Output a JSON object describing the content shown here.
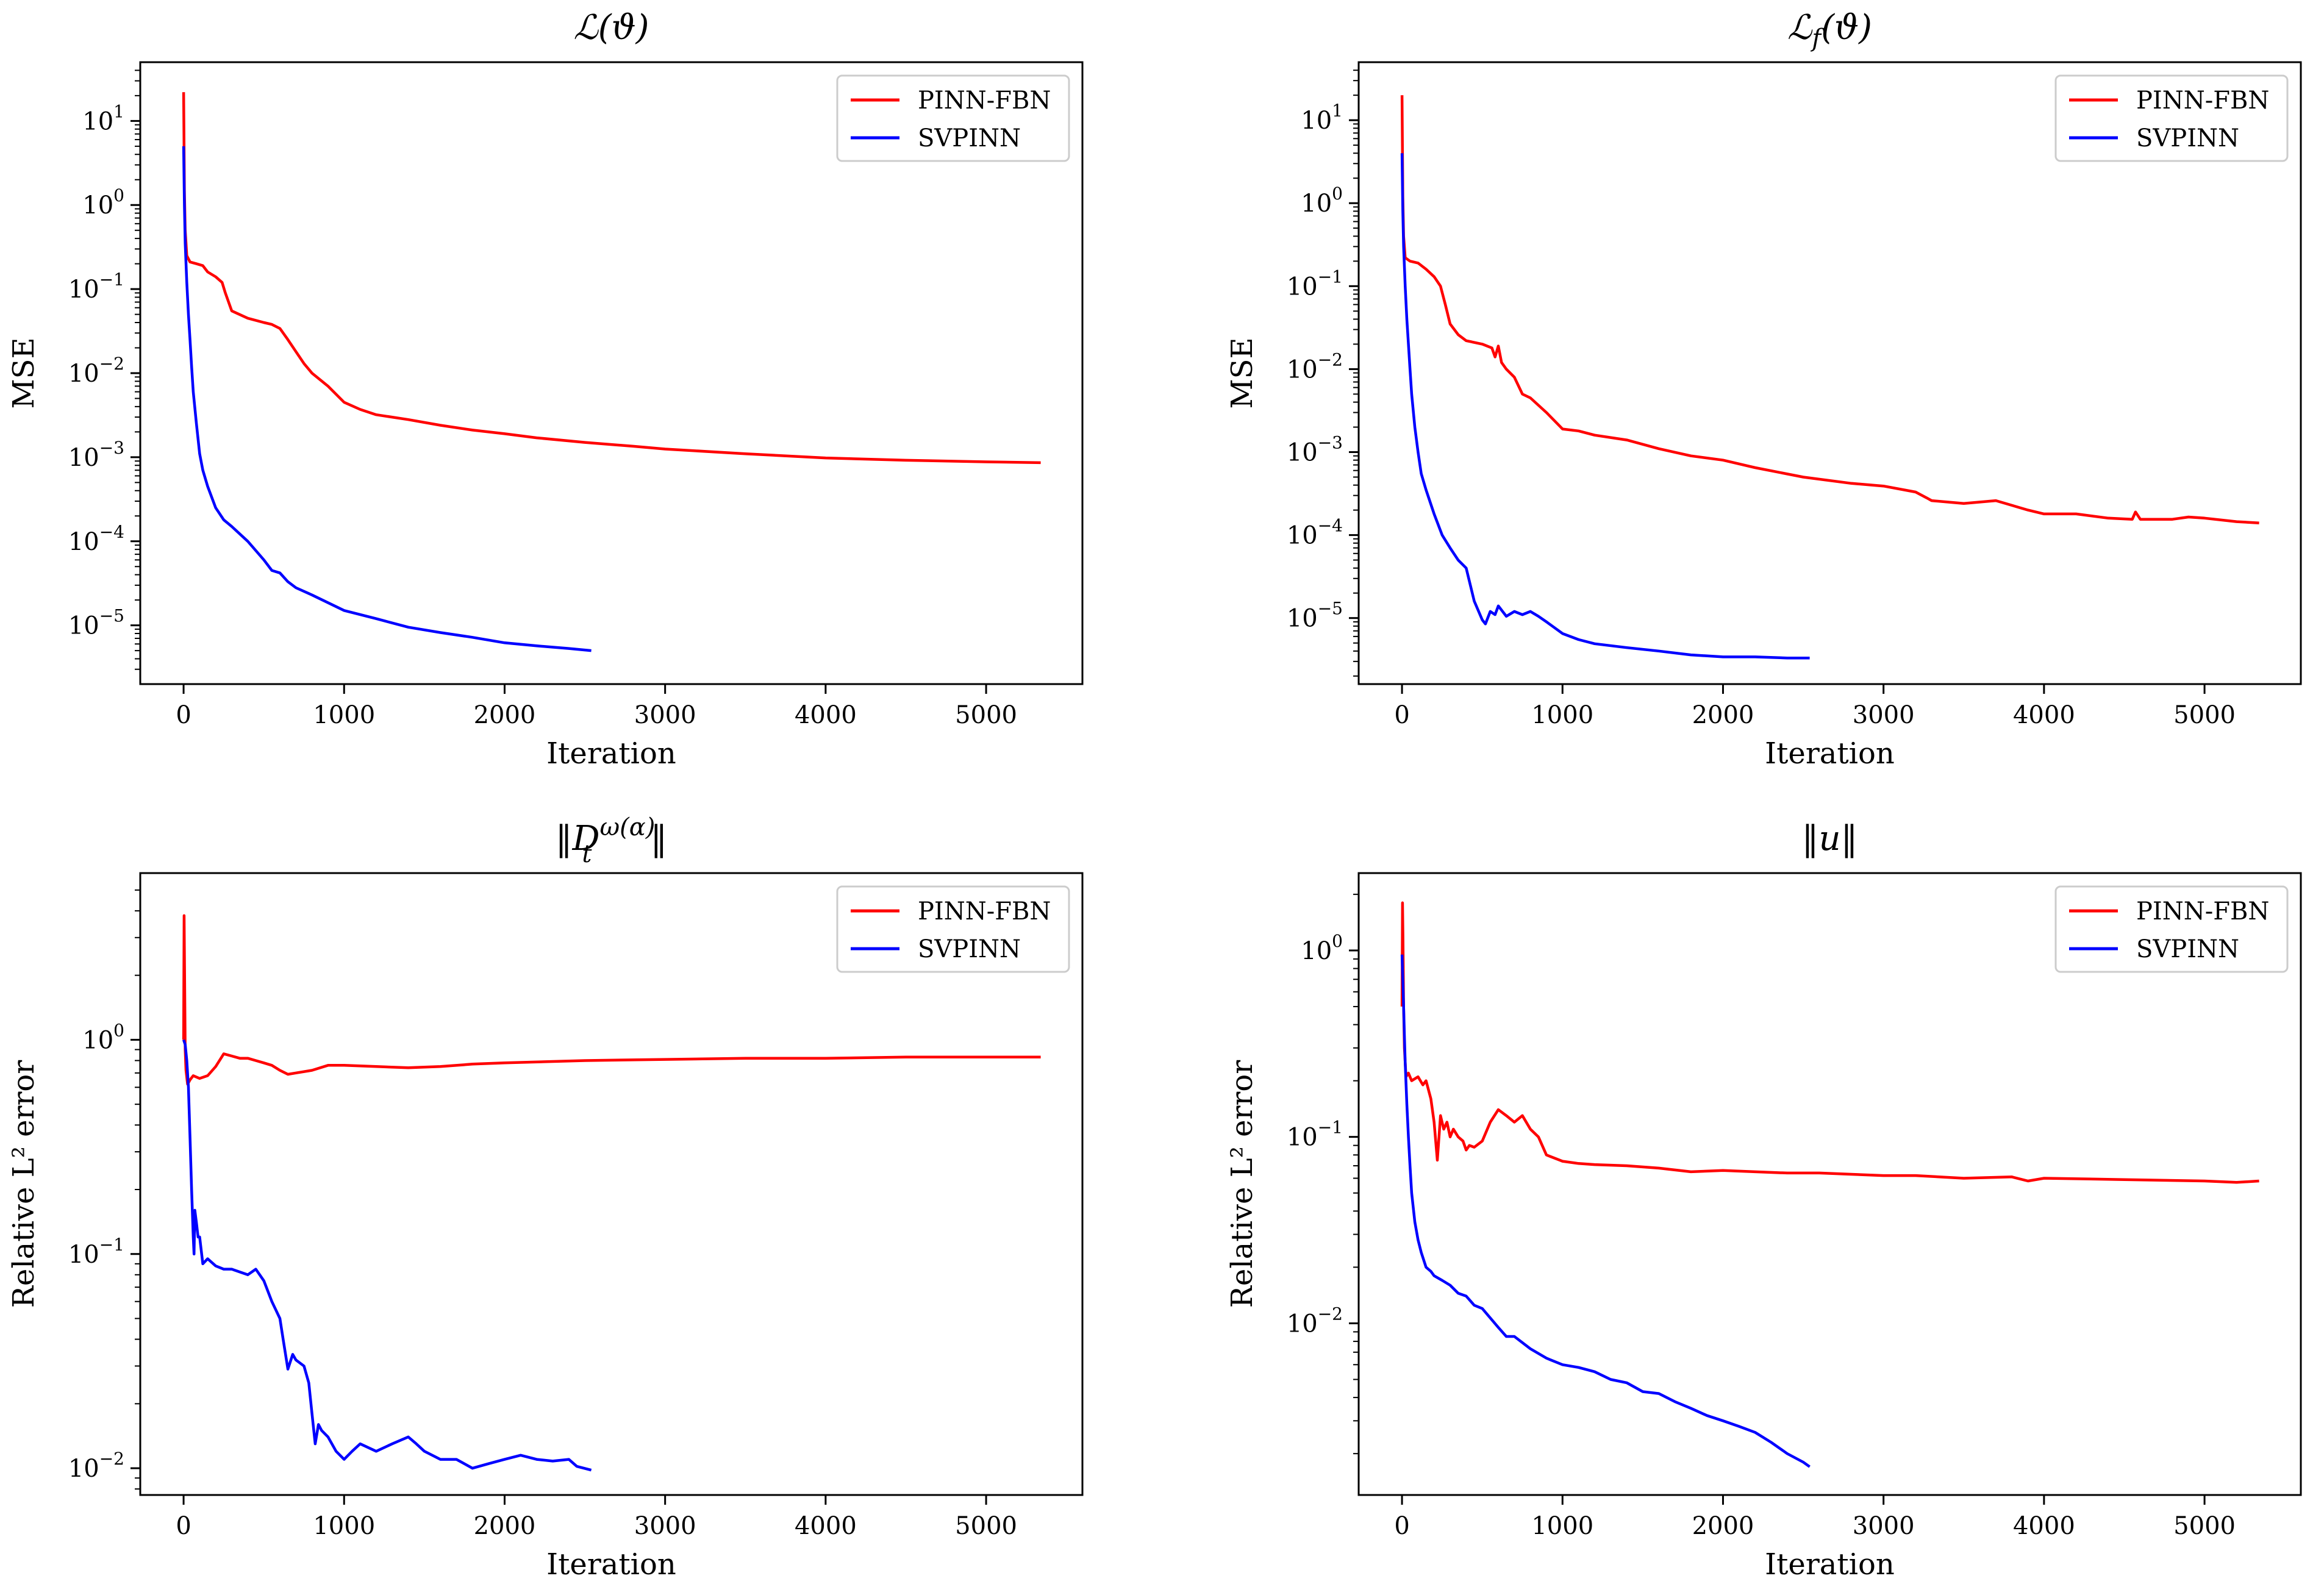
{
  "figure": {
    "background": "#ffffff"
  },
  "colors": {
    "pinn_fbn": "#ff0000",
    "svpinn": "#0000ff",
    "axis": "#000000"
  },
  "chart_data": [
    {
      "id": "loss-total",
      "type": "line",
      "title": "ℒ(ϑ)",
      "xlabel": "Iteration",
      "ylabel": "MSE",
      "yscale": "log",
      "xlim": [
        -270,
        5600
      ],
      "ylim": [
        2e-06,
        50
      ],
      "xticks": [
        0,
        1000,
        2000,
        3000,
        4000,
        5000
      ],
      "xticklabels": [
        "0",
        "1000",
        "2000",
        "3000",
        "4000",
        "5000"
      ],
      "yticks": [
        10,
        1,
        0.1,
        0.01,
        0.001,
        0.0001,
        1e-05
      ],
      "yticklabels": [
        {
          "b": "10",
          "e": "1"
        },
        {
          "b": "10",
          "e": "0"
        },
        {
          "b": "10",
          "e": "−1"
        },
        {
          "b": "10",
          "e": "−2"
        },
        {
          "b": "10",
          "e": "−3"
        },
        {
          "b": "10",
          "e": "−4"
        },
        {
          "b": "10",
          "e": "−5"
        }
      ],
      "legend": {
        "position": "top-right",
        "entries": [
          "PINN-FBN",
          "SVPINN"
        ]
      },
      "series": [
        {
          "name": "PINN-FBN",
          "color": "#ff0000",
          "x": [
            0,
            5,
            10,
            20,
            40,
            80,
            120,
            150,
            200,
            240,
            260,
            300,
            400,
            500,
            550,
            600,
            650,
            700,
            750,
            800,
            900,
            1000,
            1100,
            1200,
            1400,
            1600,
            1800,
            2000,
            2200,
            2500,
            2800,
            3000,
            3500,
            4000,
            4500,
            5000,
            5340
          ],
          "y": [
            22,
            1.5,
            0.5,
            0.25,
            0.21,
            0.2,
            0.19,
            0.16,
            0.14,
            0.12,
            0.09,
            0.055,
            0.045,
            0.04,
            0.038,
            0.034,
            0.025,
            0.018,
            0.013,
            0.01,
            0.007,
            0.0045,
            0.0037,
            0.0032,
            0.0028,
            0.0024,
            0.0021,
            0.0019,
            0.0017,
            0.0015,
            0.00135,
            0.00125,
            0.0011,
            0.00098,
            0.00092,
            0.00088,
            0.00086
          ]
        },
        {
          "name": "SVPINN",
          "color": "#0000ff",
          "x": [
            0,
            5,
            10,
            20,
            30,
            40,
            50,
            60,
            80,
            100,
            120,
            150,
            200,
            250,
            300,
            400,
            500,
            550,
            600,
            650,
            700,
            800,
            1000,
            1200,
            1400,
            1600,
            1800,
            2000,
            2200,
            2400,
            2540
          ],
          "y": [
            5,
            1,
            0.35,
            0.12,
            0.05,
            0.025,
            0.012,
            0.006,
            0.0025,
            0.0011,
            0.0007,
            0.00045,
            0.00025,
            0.00018,
            0.00015,
            0.0001,
            6e-05,
            4.5e-05,
            4.2e-05,
            3.3e-05,
            2.8e-05,
            2.3e-05,
            1.5e-05,
            1.2e-05,
            9.5e-06,
            8.2e-06,
            7.2e-06,
            6.2e-06,
            5.7e-06,
            5.3e-06,
            5e-06
          ]
        }
      ]
    },
    {
      "id": "loss-residual",
      "type": "line",
      "title": "ℒ_f(ϑ)",
      "xlabel": "Iteration",
      "ylabel": "MSE",
      "yscale": "log",
      "xlim": [
        -270,
        5600
      ],
      "ylim": [
        1.6e-06,
        50
      ],
      "xticks": [
        0,
        1000,
        2000,
        3000,
        4000,
        5000
      ],
      "xticklabels": [
        "0",
        "1000",
        "2000",
        "3000",
        "4000",
        "5000"
      ],
      "yticks": [
        10,
        1,
        0.1,
        0.01,
        0.001,
        0.0001,
        1e-05
      ],
      "yticklabels": [
        {
          "b": "10",
          "e": "1"
        },
        {
          "b": "10",
          "e": "0"
        },
        {
          "b": "10",
          "e": "−1"
        },
        {
          "b": "10",
          "e": "−2"
        },
        {
          "b": "10",
          "e": "−3"
        },
        {
          "b": "10",
          "e": "−4"
        },
        {
          "b": "10",
          "e": "−5"
        }
      ],
      "legend": {
        "position": "top-right",
        "entries": [
          "PINN-FBN",
          "SVPINN"
        ]
      },
      "series": [
        {
          "name": "PINN-FBN",
          "color": "#ff0000",
          "x": [
            0,
            5,
            10,
            20,
            50,
            100,
            150,
            200,
            240,
            270,
            300,
            350,
            400,
            500,
            560,
            580,
            600,
            620,
            650,
            700,
            750,
            800,
            900,
            1000,
            1100,
            1200,
            1400,
            1600,
            1800,
            2000,
            2200,
            2500,
            2800,
            3000,
            3200,
            3270,
            3300,
            3500,
            3700,
            3900,
            4000,
            4200,
            4400,
            4550,
            4570,
            4600,
            4800,
            4900,
            5000,
            5200,
            5340
          ],
          "y": [
            20,
            1.2,
            0.4,
            0.22,
            0.2,
            0.19,
            0.16,
            0.13,
            0.1,
            0.06,
            0.035,
            0.026,
            0.022,
            0.02,
            0.018,
            0.014,
            0.019,
            0.012,
            0.01,
            0.008,
            0.005,
            0.0045,
            0.003,
            0.0019,
            0.0018,
            0.0016,
            0.0014,
            0.0011,
            0.0009,
            0.0008,
            0.00065,
            0.0005,
            0.00042,
            0.00039,
            0.00033,
            0.00028,
            0.00026,
            0.00024,
            0.00026,
            0.0002,
            0.00018,
            0.00018,
            0.00016,
            0.000155,
            0.00019,
            0.000155,
            0.000155,
            0.000165,
            0.00016,
            0.000145,
            0.00014
          ]
        },
        {
          "name": "SVPINN",
          "color": "#0000ff",
          "x": [
            0,
            5,
            10,
            20,
            30,
            40,
            50,
            60,
            80,
            100,
            120,
            150,
            200,
            250,
            300,
            350,
            400,
            450,
            500,
            520,
            550,
            580,
            600,
            650,
            700,
            750,
            800,
            850,
            900,
            1000,
            1100,
            1200,
            1400,
            1600,
            1800,
            2000,
            2200,
            2400,
            2540
          ],
          "y": [
            4,
            0.8,
            0.3,
            0.1,
            0.04,
            0.02,
            0.01,
            0.005,
            0.002,
            0.001,
            0.00055,
            0.00035,
            0.00018,
            0.0001,
            7e-05,
            5e-05,
            4e-05,
            1.6e-05,
            9.5e-06,
            8.5e-06,
            1.2e-05,
            1.1e-05,
            1.4e-05,
            1.05e-05,
            1.2e-05,
            1.1e-05,
            1.2e-05,
            1.05e-05,
            9e-06,
            6.5e-06,
            5.5e-06,
            4.9e-06,
            4.4e-06,
            4e-06,
            3.6e-06,
            3.4e-06,
            3.4e-06,
            3.3e-06,
            3.3e-06
          ]
        }
      ]
    },
    {
      "id": "error-derivative",
      "type": "line",
      "title": "‖D_t^{ω(α)}‖",
      "xlabel": "Iteration",
      "ylabel": "Relative L² error",
      "yscale": "log",
      "xlim": [
        -270,
        5600
      ],
      "ylim": [
        0.0075,
        6
      ],
      "xticks": [
        0,
        1000,
        2000,
        3000,
        4000,
        5000
      ],
      "xticklabels": [
        "0",
        "1000",
        "2000",
        "3000",
        "4000",
        "5000"
      ],
      "yticks": [
        1,
        0.1,
        0.01
      ],
      "yticklabels": [
        {
          "b": "10",
          "e": "0"
        },
        {
          "b": "10",
          "e": "−1"
        },
        {
          "b": "10",
          "e": "−2"
        }
      ],
      "legend": {
        "position": "top-right",
        "entries": [
          "PINN-FBN",
          "SVPINN"
        ]
      },
      "series": [
        {
          "name": "PINN-FBN",
          "color": "#ff0000",
          "x": [
            0,
            3,
            6,
            10,
            15,
            25,
            40,
            60,
            100,
            150,
            200,
            250,
            300,
            350,
            400,
            450,
            500,
            550,
            600,
            650,
            700,
            800,
            900,
            1000,
            1200,
            1400,
            1600,
            1800,
            2000,
            2500,
            3000,
            3500,
            4000,
            4500,
            5000,
            5340
          ],
          "y": [
            1.0,
            3.8,
            2.2,
            0.9,
            0.72,
            0.62,
            0.65,
            0.68,
            0.66,
            0.68,
            0.75,
            0.86,
            0.84,
            0.82,
            0.82,
            0.8,
            0.78,
            0.76,
            0.72,
            0.69,
            0.7,
            0.72,
            0.76,
            0.76,
            0.75,
            0.74,
            0.75,
            0.77,
            0.78,
            0.8,
            0.81,
            0.82,
            0.82,
            0.83,
            0.83,
            0.83
          ]
        },
        {
          "name": "SVPINN",
          "color": "#0000ff",
          "x": [
            0,
            10,
            20,
            30,
            40,
            50,
            60,
            65,
            70,
            80,
            90,
            100,
            120,
            150,
            200,
            250,
            300,
            400,
            450,
            500,
            550,
            600,
            620,
            650,
            680,
            700,
            750,
            780,
            800,
            820,
            840,
            860,
            900,
            950,
            1000,
            1050,
            1100,
            1200,
            1300,
            1400,
            1450,
            1500,
            1600,
            1700,
            1800,
            1900,
            2000,
            2100,
            2200,
            2300,
            2400,
            2450,
            2540
          ],
          "y": [
            1.0,
            0.95,
            0.8,
            0.6,
            0.35,
            0.2,
            0.12,
            0.1,
            0.16,
            0.14,
            0.12,
            0.12,
            0.09,
            0.095,
            0.088,
            0.085,
            0.085,
            0.08,
            0.085,
            0.075,
            0.06,
            0.05,
            0.04,
            0.029,
            0.034,
            0.032,
            0.03,
            0.025,
            0.018,
            0.013,
            0.016,
            0.015,
            0.014,
            0.012,
            0.011,
            0.012,
            0.013,
            0.012,
            0.013,
            0.014,
            0.013,
            0.012,
            0.011,
            0.011,
            0.01,
            0.0105,
            0.011,
            0.0115,
            0.011,
            0.0108,
            0.011,
            0.0102,
            0.0098
          ]
        }
      ]
    },
    {
      "id": "error-solution",
      "type": "line",
      "title": "‖u‖",
      "xlabel": "Iteration",
      "ylabel": "Relative L² error",
      "yscale": "log",
      "xlim": [
        -270,
        5600
      ],
      "ylim": [
        0.0012,
        2.6
      ],
      "xticks": [
        0,
        1000,
        2000,
        3000,
        4000,
        5000
      ],
      "xticklabels": [
        "0",
        "1000",
        "2000",
        "3000",
        "4000",
        "5000"
      ],
      "yticks": [
        1,
        0.1,
        0.01
      ],
      "yticklabels": [
        {
          "b": "10",
          "e": "0"
        },
        {
          "b": "10",
          "e": "−1"
        },
        {
          "b": "10",
          "e": "−2"
        }
      ],
      "legend": {
        "position": "top-right",
        "entries": [
          "PINN-FBN",
          "SVPINN"
        ]
      },
      "series": [
        {
          "name": "PINN-FBN",
          "color": "#ff0000",
          "x": [
            0,
            3,
            6,
            10,
            15,
            25,
            40,
            60,
            100,
            130,
            150,
            180,
            200,
            220,
            240,
            260,
            280,
            300,
            320,
            350,
            380,
            400,
            420,
            450,
            500,
            550,
            600,
            650,
            700,
            750,
            800,
            850,
            900,
            1000,
            1100,
            1200,
            1400,
            1600,
            1800,
            2000,
            2200,
            2400,
            2600,
            2800,
            3000,
            3200,
            3500,
            3800,
            3900,
            4000,
            4500,
            5000,
            5200,
            5340
          ],
          "y": [
            0.5,
            1.8,
            1.2,
            0.5,
            0.3,
            0.21,
            0.22,
            0.2,
            0.21,
            0.19,
            0.2,
            0.16,
            0.12,
            0.075,
            0.13,
            0.11,
            0.12,
            0.1,
            0.11,
            0.1,
            0.095,
            0.085,
            0.09,
            0.088,
            0.095,
            0.12,
            0.14,
            0.13,
            0.12,
            0.13,
            0.11,
            0.1,
            0.08,
            0.074,
            0.072,
            0.071,
            0.07,
            0.068,
            0.065,
            0.066,
            0.065,
            0.064,
            0.064,
            0.063,
            0.062,
            0.062,
            0.06,
            0.061,
            0.058,
            0.06,
            0.059,
            0.058,
            0.057,
            0.058
          ]
        },
        {
          "name": "SVPINN",
          "color": "#0000ff",
          "x": [
            0,
            5,
            10,
            15,
            20,
            30,
            40,
            50,
            60,
            80,
            100,
            120,
            150,
            180,
            200,
            250,
            300,
            350,
            400,
            450,
            500,
            600,
            650,
            700,
            800,
            900,
            1000,
            1100,
            1200,
            1300,
            1400,
            1500,
            1600,
            1700,
            1800,
            1900,
            2000,
            2100,
            2200,
            2300,
            2400,
            2500,
            2540
          ],
          "y": [
            0.95,
            0.7,
            0.5,
            0.35,
            0.25,
            0.15,
            0.1,
            0.07,
            0.05,
            0.035,
            0.028,
            0.024,
            0.02,
            0.019,
            0.018,
            0.017,
            0.016,
            0.0145,
            0.014,
            0.0125,
            0.012,
            0.0095,
            0.0085,
            0.0085,
            0.0073,
            0.0065,
            0.006,
            0.0058,
            0.0055,
            0.005,
            0.0048,
            0.0043,
            0.0042,
            0.0038,
            0.0035,
            0.0032,
            0.003,
            0.0028,
            0.0026,
            0.0023,
            0.002,
            0.0018,
            0.0017
          ]
        }
      ]
    }
  ]
}
